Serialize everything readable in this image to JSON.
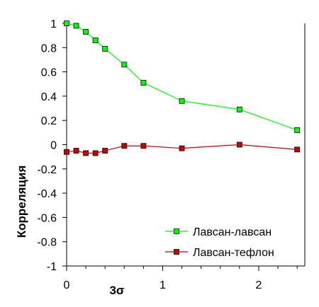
{
  "chart_data": {
    "type": "line",
    "xlabel": "3σ",
    "ylabel": "Корреляция",
    "xlim": [
      0,
      2.48
    ],
    "ylim": [
      -1,
      1
    ],
    "x_ticks": [
      0,
      1,
      2
    ],
    "x_tick_labels": [
      "0",
      "1",
      "2"
    ],
    "x_minor_step": 0.2,
    "y_ticks": [
      1,
      0.8,
      0.6,
      0.4,
      0.2,
      0,
      -0.2,
      -0.4,
      -0.6,
      -0.8,
      -1
    ],
    "y_tick_labels": [
      "1",
      "0.8",
      "0.6",
      "0.4",
      "0.2",
      "0",
      "-0.2",
      "-0.4",
      "-0.6",
      "-0.8",
      "-1"
    ],
    "grid": false,
    "legend_position": "bottom-right",
    "series": [
      {
        "name": "Лавсан-лавсан",
        "color": "#00ff00",
        "marker_fill": "#00ff00",
        "x": [
          0,
          0.1,
          0.2,
          0.3,
          0.4,
          0.6,
          0.8,
          1.2,
          1.8,
          2.4
        ],
        "y": [
          1.0,
          0.98,
          0.93,
          0.86,
          0.79,
          0.66,
          0.51,
          0.36,
          0.29,
          0.12
        ]
      },
      {
        "name": "Лавсан-тефлон",
        "color": "#cc0000",
        "marker_fill": "#cc0000",
        "x": [
          0,
          0.1,
          0.2,
          0.3,
          0.4,
          0.6,
          0.8,
          1.2,
          1.8,
          2.4
        ],
        "y": [
          -0.06,
          -0.05,
          -0.07,
          -0.07,
          -0.05,
          -0.01,
          -0.01,
          -0.03,
          0.0,
          -0.04
        ]
      }
    ]
  }
}
